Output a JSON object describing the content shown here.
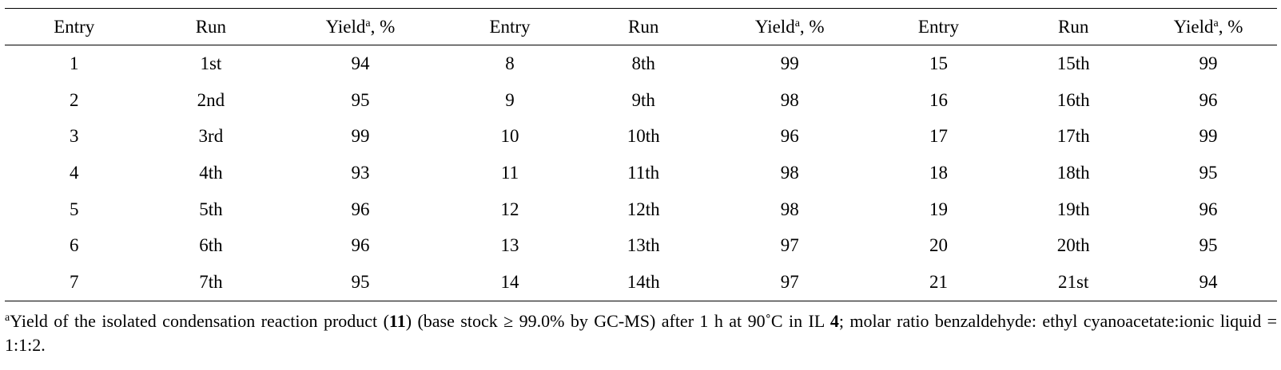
{
  "table": {
    "headers": [
      {
        "main": "Entry",
        "sup": "",
        "tail": ""
      },
      {
        "main": "Run",
        "sup": "",
        "tail": ""
      },
      {
        "main": "Yield",
        "sup": "a",
        "tail": ", %"
      },
      {
        "main": "Entry",
        "sup": "",
        "tail": ""
      },
      {
        "main": "Run",
        "sup": "",
        "tail": ""
      },
      {
        "main": "Yield",
        "sup": "a",
        "tail": ", %"
      },
      {
        "main": "Entry",
        "sup": "",
        "tail": ""
      },
      {
        "main": "Run",
        "sup": "",
        "tail": ""
      },
      {
        "main": "Yield",
        "sup": "a",
        "tail": ", %"
      }
    ],
    "rows": [
      [
        "1",
        "1st",
        "94",
        "8",
        "8th",
        "99",
        "15",
        "15th",
        "99"
      ],
      [
        "2",
        "2nd",
        "95",
        "9",
        "9th",
        "98",
        "16",
        "16th",
        "96"
      ],
      [
        "3",
        "3rd",
        "99",
        "10",
        "10th",
        "96",
        "17",
        "17th",
        "99"
      ],
      [
        "4",
        "4th",
        "93",
        "11",
        "11th",
        "98",
        "18",
        "18th",
        "95"
      ],
      [
        "5",
        "5th",
        "96",
        "12",
        "12th",
        "98",
        "19",
        "19th",
        "96"
      ],
      [
        "6",
        "6th",
        "96",
        "13",
        "13th",
        "97",
        "20",
        "20th",
        "95"
      ],
      [
        "7",
        "7th",
        "95",
        "14",
        "14th",
        "97",
        "21",
        "21st",
        "94"
      ]
    ]
  },
  "footnote": {
    "marker": "a",
    "part1": "Yield of the isolated condensation reaction product (",
    "bold1": "11",
    "part2": ") (base stock ≥ 99.0% by GC-MS) after 1 h at 90˚C in IL ",
    "bold2": "4",
    "part3": "; molar ratio benzaldehyde: ethyl cyanoacetate:ionic liquid = 1:1:2."
  }
}
